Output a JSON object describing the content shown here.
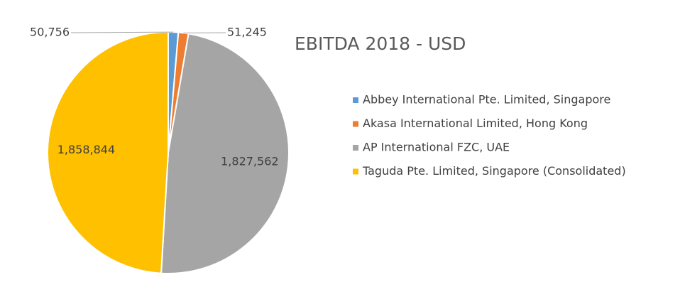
{
  "chart_data": {
    "type": "pie",
    "title": "EBITDA 2018 - USD",
    "categories": [
      "Abbey International Pte. Limited, Singapore",
      "Akasa International Limited, Hong Kong",
      "AP International FZC, UAE",
      "Taguda Pte. Limited, Singapore (Consolidated)"
    ],
    "values": [
      50756,
      51245,
      1827562,
      1858844
    ],
    "value_labels": [
      "50,756",
      "51,245",
      "1,827,562",
      "1,858,844"
    ],
    "colors": [
      "#5b9bd5",
      "#ed7d31",
      "#a5a5a5",
      "#ffc000"
    ],
    "legend": "right"
  }
}
